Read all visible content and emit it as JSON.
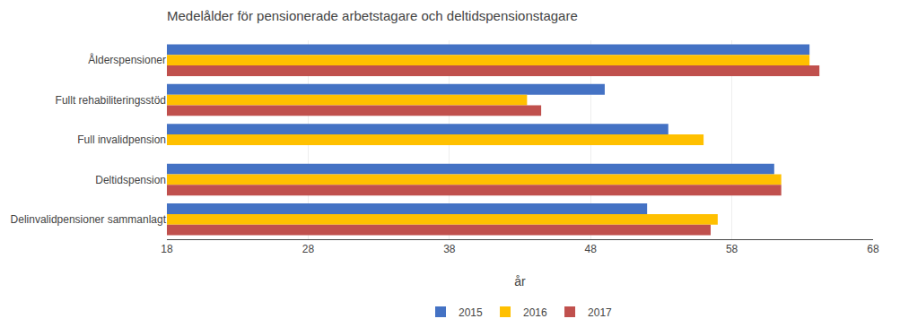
{
  "chart_data": {
    "type": "bar",
    "orientation": "horizontal",
    "title": "Medelålder för pensionerade arbetstagare och deltidspensionstagare",
    "categories": [
      "Ålderspensioner",
      "Fullt rehabiliteringsstöd",
      "Full invalidpension",
      "Deltidspension",
      "Delinvalidpensioner sammanlagt"
    ],
    "series": [
      {
        "name": "2015",
        "color": "#4472C4",
        "values": [
          63.5,
          49.0,
          53.5,
          61.0,
          52.0
        ]
      },
      {
        "name": "2016",
        "color": "#FFC000",
        "values": [
          63.5,
          43.5,
          56.0,
          61.5,
          57.0
        ]
      },
      {
        "name": "2017",
        "color": "#C0504D",
        "values": [
          64.2,
          44.5,
          null,
          61.5,
          56.5
        ]
      }
    ],
    "xlabel": "år",
    "xlim": [
      18,
      68
    ],
    "xticks": [
      18,
      28,
      38,
      48,
      58,
      68
    ],
    "grid": true,
    "legend": "bottom"
  }
}
